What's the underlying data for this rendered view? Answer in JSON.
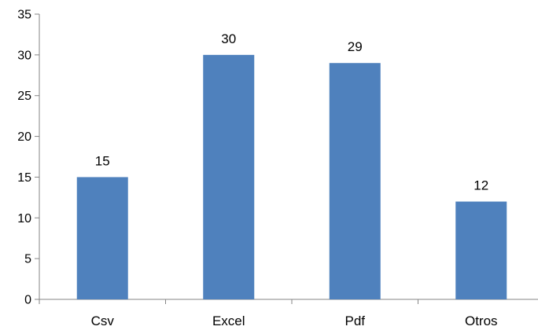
{
  "chart_data": {
    "type": "bar",
    "categories": [
      "Csv",
      "Excel",
      "Pdf",
      "Otros"
    ],
    "values": [
      15,
      30,
      29,
      12
    ],
    "data_labels": [
      "15",
      "30",
      "29",
      "12"
    ],
    "ylim": [
      0,
      35
    ],
    "yticks": [
      0,
      5,
      10,
      15,
      20,
      25,
      30,
      35
    ],
    "ytick_labels": [
      "0",
      "5",
      "10",
      "15",
      "20",
      "25",
      "30",
      "35"
    ],
    "title": "",
    "xlabel": "",
    "ylabel": "",
    "grid": false,
    "legend": "none",
    "bar_color": "#4F81BD",
    "axis_color": "#868686"
  }
}
